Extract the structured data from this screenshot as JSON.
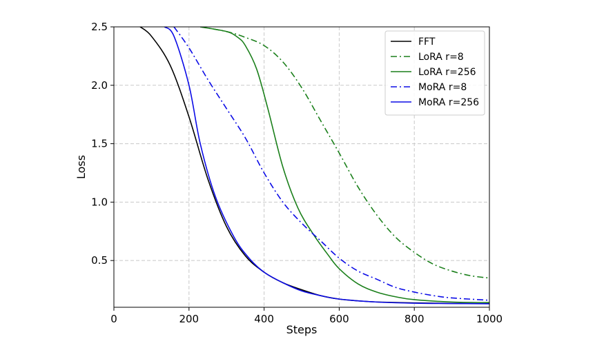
{
  "chart_data": {
    "type": "line",
    "xlabel": "Steps",
    "ylabel": "Loss",
    "xlim": [
      0,
      1000
    ],
    "ylim": [
      0.1,
      2.5
    ],
    "xticks": [
      0,
      200,
      400,
      600,
      800,
      1000
    ],
    "xtick_labels": [
      "0",
      "200",
      "400",
      "600",
      "800",
      "1000"
    ],
    "yticks": [
      0.5,
      1.0,
      1.5,
      2.0,
      2.5
    ],
    "ytick_labels": [
      "0.5",
      "1.0",
      "1.5",
      "2.0",
      "2.5"
    ],
    "grid": true,
    "legend_position": "top-right",
    "series": [
      {
        "name": "FFT",
        "color": "#000000",
        "style": "solid",
        "points": [
          [
            70,
            2.5
          ],
          [
            100,
            2.42
          ],
          [
            150,
            2.17
          ],
          [
            200,
            1.73
          ],
          [
            250,
            1.2
          ],
          [
            300,
            0.79
          ],
          [
            350,
            0.54
          ],
          [
            400,
            0.4
          ],
          [
            450,
            0.31
          ],
          [
            500,
            0.25
          ],
          [
            550,
            0.2
          ],
          [
            600,
            0.17
          ],
          [
            650,
            0.155
          ],
          [
            700,
            0.145
          ],
          [
            800,
            0.137
          ],
          [
            900,
            0.133
          ],
          [
            1000,
            0.131
          ]
        ]
      },
      {
        "name": "LoRA r=8",
        "color": "#1a7f1a",
        "style": "dashdot",
        "points": [
          [
            230,
            2.5
          ],
          [
            300,
            2.46
          ],
          [
            350,
            2.41
          ],
          [
            400,
            2.34
          ],
          [
            450,
            2.2
          ],
          [
            500,
            1.98
          ],
          [
            550,
            1.7
          ],
          [
            600,
            1.42
          ],
          [
            650,
            1.13
          ],
          [
            700,
            0.89
          ],
          [
            750,
            0.7
          ],
          [
            800,
            0.57
          ],
          [
            850,
            0.47
          ],
          [
            900,
            0.41
          ],
          [
            950,
            0.37
          ],
          [
            1000,
            0.35
          ]
        ]
      },
      {
        "name": "LoRA r=256",
        "color": "#1a7f1a",
        "style": "solid",
        "points": [
          [
            230,
            2.5
          ],
          [
            300,
            2.46
          ],
          [
            330,
            2.41
          ],
          [
            350,
            2.34
          ],
          [
            380,
            2.14
          ],
          [
            410,
            1.8
          ],
          [
            450,
            1.3
          ],
          [
            490,
            0.95
          ],
          [
            530,
            0.73
          ],
          [
            570,
            0.55
          ],
          [
            600,
            0.43
          ],
          [
            650,
            0.3
          ],
          [
            700,
            0.23
          ],
          [
            750,
            0.19
          ],
          [
            800,
            0.165
          ],
          [
            900,
            0.145
          ],
          [
            1000,
            0.14
          ]
        ]
      },
      {
        "name": "MoRA r=8",
        "color": "#0a0ae6",
        "style": "dashdot",
        "points": [
          [
            160,
            2.5
          ],
          [
            200,
            2.32
          ],
          [
            250,
            2.05
          ],
          [
            300,
            1.8
          ],
          [
            350,
            1.55
          ],
          [
            400,
            1.25
          ],
          [
            450,
            1.0
          ],
          [
            500,
            0.82
          ],
          [
            550,
            0.67
          ],
          [
            600,
            0.52
          ],
          [
            650,
            0.41
          ],
          [
            700,
            0.34
          ],
          [
            750,
            0.27
          ],
          [
            800,
            0.23
          ],
          [
            850,
            0.2
          ],
          [
            900,
            0.18
          ],
          [
            1000,
            0.16
          ]
        ]
      },
      {
        "name": "MoRA r=256",
        "color": "#0a0ae6",
        "style": "solid",
        "points": [
          [
            135,
            2.5
          ],
          [
            160,
            2.42
          ],
          [
            200,
            2.0
          ],
          [
            230,
            1.5
          ],
          [
            270,
            1.05
          ],
          [
            320,
            0.7
          ],
          [
            360,
            0.52
          ],
          [
            400,
            0.4
          ],
          [
            450,
            0.31
          ],
          [
            500,
            0.24
          ],
          [
            550,
            0.2
          ],
          [
            600,
            0.17
          ],
          [
            700,
            0.145
          ],
          [
            800,
            0.135
          ],
          [
            900,
            0.132
          ],
          [
            1000,
            0.13
          ]
        ]
      }
    ]
  }
}
